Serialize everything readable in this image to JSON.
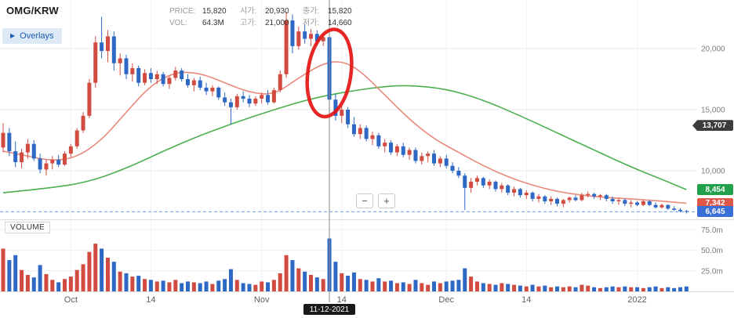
{
  "header": {
    "symbol": "OMG/KRW",
    "overlays_label": "Overlays",
    "info": {
      "price_label": "PRICE:",
      "price": "15,820",
      "vol_label": "VOL:",
      "vol": "64.3M",
      "open_label": "시가:",
      "open": "20,930",
      "high_label": "고가:",
      "high": "21,000",
      "close_label": "종가:",
      "close": "15,820",
      "low_label": "저가:",
      "low": "14,660"
    }
  },
  "controls": {
    "zoom_out": "−",
    "zoom_in": "+"
  },
  "volume_panel": {
    "label": "VOLUME"
  },
  "chart_data": {
    "type": "candlestick+volume",
    "title": "OMG/KRW daily candlestick chart with two moving averages and volume",
    "colors": {
      "up": "#d14b41",
      "down": "#2d68c4",
      "crosshair": "#8a8a8a",
      "dashed_line": "#6e9bf0"
    },
    "y_ticks_price": [
      {
        "label": "20,000",
        "value": 20000
      },
      {
        "label": "15,000",
        "value": 15000
      },
      {
        "label": "10,000",
        "value": 10000
      }
    ],
    "y_ticks_volume": [
      {
        "label": "75.0m",
        "value": 75
      },
      {
        "label": "50.0m",
        "value": 50
      },
      {
        "label": "25.0m",
        "value": 25
      }
    ],
    "x_ticks": [
      {
        "label": "Oct",
        "index": 11
      },
      {
        "label": "14",
        "index": 24
      },
      {
        "label": "Nov",
        "index": 42
      },
      {
        "label": "14",
        "index": 55
      },
      {
        "label": "Dec",
        "index": 72
      },
      {
        "label": "14",
        "index": 85
      },
      {
        "label": "2022",
        "index": 103
      }
    ],
    "price_badges": [
      {
        "label": "13,707",
        "price": 13707,
        "color": "#3c3c3c",
        "kind": "crosshair-price"
      },
      {
        "label": "8,454",
        "price": 8454,
        "color": "#23a04b",
        "kind": "ma-green-value"
      },
      {
        "label": "7,342",
        "price": 7342,
        "color": "#e0564a",
        "kind": "ma-red-value"
      },
      {
        "label": "6,645",
        "price": 6645,
        "color": "#3a6fd8",
        "kind": "last-price"
      }
    ],
    "dashed_line_price": 6645,
    "crosshair": {
      "index": 53,
      "date_label": "11-12-2021"
    },
    "annotation_ellipse": {
      "index": 53,
      "price_top": 21600,
      "price_bottom": 14400,
      "width_candles": 7,
      "rotate_deg": 8,
      "color": "#e51414"
    },
    "ma_green": {
      "color": "#4caf50",
      "points": [
        [
          0,
          8200
        ],
        [
          8,
          8600
        ],
        [
          14,
          9100
        ],
        [
          20,
          10200
        ],
        [
          26,
          11600
        ],
        [
          32,
          12900
        ],
        [
          38,
          14000
        ],
        [
          44,
          15000
        ],
        [
          50,
          15900
        ],
        [
          56,
          16500
        ],
        [
          62,
          16900
        ],
        [
          66,
          17000
        ],
        [
          72,
          16700
        ],
        [
          78,
          15800
        ],
        [
          84,
          14500
        ],
        [
          90,
          13100
        ],
        [
          96,
          11700
        ],
        [
          102,
          10300
        ],
        [
          107,
          9300
        ],
        [
          111,
          8454
        ]
      ]
    },
    "ma_red": {
      "color": "#e8897b",
      "points": [
        [
          0,
          11600
        ],
        [
          4,
          11200
        ],
        [
          8,
          10800
        ],
        [
          12,
          11100
        ],
        [
          16,
          12500
        ],
        [
          20,
          14800
        ],
        [
          24,
          17000
        ],
        [
          28,
          18100
        ],
        [
          32,
          18000
        ],
        [
          36,
          17200
        ],
        [
          40,
          16400
        ],
        [
          44,
          16200
        ],
        [
          48,
          17600
        ],
        [
          52,
          18800
        ],
        [
          55,
          19000
        ],
        [
          58,
          18200
        ],
        [
          62,
          16200
        ],
        [
          66,
          14200
        ],
        [
          70,
          12600
        ],
        [
          74,
          11500
        ],
        [
          78,
          10400
        ],
        [
          82,
          9500
        ],
        [
          86,
          8800
        ],
        [
          90,
          8300
        ],
        [
          94,
          8000
        ],
        [
          98,
          7800
        ],
        [
          102,
          7700
        ],
        [
          106,
          7550
        ],
        [
          111,
          7342
        ]
      ]
    },
    "candles": [
      [
        "2021-09-20",
        11900,
        13900,
        11500,
        13100,
        52
      ],
      [
        "2021-09-21",
        13100,
        13500,
        11200,
        11600,
        38
      ],
      [
        "2021-09-22",
        11600,
        12400,
        10300,
        10700,
        44
      ],
      [
        "2021-09-23",
        10700,
        11800,
        10200,
        11500,
        26
      ],
      [
        "2021-09-24",
        11500,
        12600,
        11000,
        12200,
        20
      ],
      [
        "2021-09-25",
        12200,
        12500,
        10800,
        11000,
        17
      ],
      [
        "2021-09-26",
        11000,
        11400,
        9800,
        10100,
        32
      ],
      [
        "2021-09-27",
        10100,
        10900,
        9600,
        10600,
        21
      ],
      [
        "2021-09-28",
        10600,
        11200,
        10100,
        10900,
        14
      ],
      [
        "2021-09-29",
        10900,
        11300,
        10300,
        10500,
        11
      ],
      [
        "2021-09-30",
        10500,
        11600,
        10400,
        11400,
        15
      ],
      [
        "2021-10-01",
        11400,
        12200,
        11100,
        12000,
        18
      ],
      [
        "2021-10-02",
        12000,
        13500,
        11800,
        13300,
        26
      ],
      [
        "2021-10-03",
        13300,
        14800,
        13100,
        14500,
        33
      ],
      [
        "2021-10-04",
        14500,
        17500,
        14300,
        17200,
        48
      ],
      [
        "2021-10-05",
        17200,
        21000,
        16800,
        20500,
        58
      ],
      [
        "2021-10-06",
        20500,
        22600,
        19200,
        19800,
        52
      ],
      [
        "2021-10-07",
        19800,
        21500,
        18900,
        21000,
        41
      ],
      [
        "2021-10-08",
        21000,
        21400,
        18200,
        18800,
        36
      ],
      [
        "2021-10-09",
        18800,
        19600,
        17800,
        19200,
        24
      ],
      [
        "2021-10-10",
        19200,
        19500,
        17500,
        17900,
        22
      ],
      [
        "2021-10-11",
        17900,
        18800,
        17300,
        18400,
        18
      ],
      [
        "2021-10-12",
        18400,
        18600,
        16900,
        17200,
        19
      ],
      [
        "2021-10-13",
        17200,
        18300,
        17000,
        18000,
        15
      ],
      [
        "2021-10-14",
        18000,
        18400,
        17200,
        17500,
        14
      ],
      [
        "2021-10-15",
        17500,
        18200,
        17100,
        17900,
        12
      ],
      [
        "2021-10-16",
        17900,
        18100,
        16900,
        17100,
        13
      ],
      [
        "2021-10-17",
        17100,
        17800,
        16700,
        17600,
        11
      ],
      [
        "2021-10-18",
        17600,
        18500,
        17400,
        18200,
        14
      ],
      [
        "2021-10-19",
        18200,
        18400,
        17300,
        17500,
        10
      ],
      [
        "2021-10-20",
        17500,
        17900,
        16800,
        17000,
        12
      ],
      [
        "2021-10-21",
        17000,
        17600,
        16500,
        17400,
        11
      ],
      [
        "2021-10-22",
        17400,
        17700,
        16600,
        16800,
        10
      ],
      [
        "2021-10-23",
        16800,
        17200,
        16200,
        16500,
        12
      ],
      [
        "2021-10-24",
        16500,
        17000,
        16100,
        16800,
        9
      ],
      [
        "2021-10-25",
        16800,
        16900,
        15800,
        16000,
        13
      ],
      [
        "2021-10-26",
        16000,
        16400,
        15300,
        15600,
        15
      ],
      [
        "2021-10-27",
        15600,
        15900,
        13800,
        15200,
        27
      ],
      [
        "2021-10-28",
        15200,
        16300,
        15000,
        16100,
        14
      ],
      [
        "2021-10-29",
        16100,
        16500,
        15600,
        15900,
        10
      ],
      [
        "2021-10-30",
        15900,
        16200,
        15200,
        15500,
        9
      ],
      [
        "2021-10-31",
        15500,
        16100,
        15300,
        15900,
        8
      ],
      [
        "2021-11-01",
        15900,
        16400,
        15500,
        16200,
        12
      ],
      [
        "2021-11-02",
        16200,
        16600,
        15400,
        15600,
        11
      ],
      [
        "2021-11-03",
        15600,
        16800,
        15500,
        16600,
        14
      ],
      [
        "2021-11-04",
        16600,
        18200,
        16400,
        17900,
        22
      ],
      [
        "2021-11-05",
        17900,
        23000,
        17600,
        22300,
        44
      ],
      [
        "2021-11-06",
        22300,
        22800,
        19600,
        20200,
        38
      ],
      [
        "2021-11-07",
        20200,
        21800,
        19900,
        21400,
        28
      ],
      [
        "2021-11-08",
        21400,
        22000,
        20400,
        20800,
        24
      ],
      [
        "2021-11-09",
        20800,
        21600,
        20200,
        21200,
        20
      ],
      [
        "2021-11-10",
        21200,
        21500,
        20300,
        20600,
        17
      ],
      [
        "2021-11-11",
        20600,
        21200,
        20200,
        20930,
        15
      ],
      [
        "2021-11-12",
        20930,
        21000,
        14660,
        15820,
        64.3
      ],
      [
        "2021-11-13",
        15820,
        16300,
        14100,
        14500,
        36
      ],
      [
        "2021-11-14",
        14500,
        15300,
        13900,
        15000,
        22
      ],
      [
        "2021-11-15",
        15000,
        15200,
        13500,
        13800,
        19
      ],
      [
        "2021-11-16",
        13800,
        14400,
        12800,
        13000,
        23
      ],
      [
        "2021-11-17",
        13000,
        13800,
        12600,
        13500,
        15
      ],
      [
        "2021-11-18",
        13500,
        13700,
        12400,
        12600,
        14
      ],
      [
        "2021-11-19",
        12600,
        13200,
        12100,
        12900,
        12
      ],
      [
        "2021-11-20",
        12900,
        13100,
        11800,
        12000,
        16
      ],
      [
        "2021-11-21",
        12000,
        12600,
        11500,
        12300,
        12
      ],
      [
        "2021-11-22",
        12300,
        12500,
        11300,
        11500,
        13
      ],
      [
        "2021-11-23",
        11500,
        12200,
        11200,
        12000,
        10
      ],
      [
        "2021-11-24",
        12000,
        12300,
        11100,
        11300,
        11
      ],
      [
        "2021-11-25",
        11300,
        11900,
        10900,
        11700,
        9
      ],
      [
        "2021-11-26",
        11700,
        11900,
        10600,
        10800,
        14
      ],
      [
        "2021-11-27",
        10800,
        11500,
        10500,
        11200,
        10
      ],
      [
        "2021-11-28",
        11200,
        11600,
        10700,
        11400,
        8
      ],
      [
        "2021-11-29",
        11400,
        11700,
        10400,
        10600,
        12
      ],
      [
        "2021-11-30",
        10600,
        11200,
        10300,
        11000,
        10
      ],
      [
        "2021-12-01",
        11000,
        11300,
        10200,
        10400,
        12
      ],
      [
        "2021-12-02",
        10400,
        10700,
        9800,
        10000,
        13
      ],
      [
        "2021-12-03",
        10000,
        10300,
        9400,
        9600,
        14
      ],
      [
        "2021-12-04",
        9600,
        9800,
        6800,
        8600,
        28
      ],
      [
        "2021-12-05",
        8600,
        9400,
        8200,
        9100,
        18
      ],
      [
        "2021-12-06",
        9100,
        9600,
        8800,
        9400,
        12
      ],
      [
        "2021-12-07",
        9400,
        9500,
        8600,
        8800,
        10
      ],
      [
        "2021-12-08",
        8800,
        9300,
        8500,
        9100,
        9
      ],
      [
        "2021-12-09",
        9100,
        9200,
        8300,
        8500,
        8
      ],
      [
        "2021-12-10",
        8500,
        9000,
        8200,
        8800,
        10
      ],
      [
        "2021-12-11",
        8800,
        8900,
        8000,
        8200,
        9
      ],
      [
        "2021-12-12",
        8200,
        8700,
        7900,
        8500,
        8
      ],
      [
        "2021-12-13",
        8500,
        8600,
        7800,
        8000,
        7
      ],
      [
        "2021-12-14",
        8000,
        8400,
        7700,
        8200,
        6
      ],
      [
        "2021-12-15",
        8200,
        8300,
        7500,
        7700,
        8
      ],
      [
        "2021-12-16",
        7700,
        8100,
        7400,
        7900,
        6
      ],
      [
        "2021-12-17",
        7900,
        8000,
        7300,
        7500,
        7
      ],
      [
        "2021-12-18",
        7500,
        7900,
        7200,
        7700,
        5
      ],
      [
        "2021-12-19",
        7700,
        7800,
        7100,
        7300,
        6
      ],
      [
        "2021-12-20",
        7300,
        7700,
        7000,
        7600,
        5
      ],
      [
        "2021-12-21",
        7600,
        7900,
        7400,
        7800,
        6
      ],
      [
        "2021-12-22",
        7800,
        8000,
        7500,
        7600,
        5
      ],
      [
        "2021-12-23",
        7600,
        8200,
        7500,
        8000,
        8
      ],
      [
        "2021-12-24",
        8000,
        8300,
        7800,
        8100,
        7
      ],
      [
        "2021-12-25",
        8100,
        8200,
        7700,
        7900,
        5
      ],
      [
        "2021-12-26",
        7900,
        8100,
        7600,
        8000,
        4
      ],
      [
        "2021-12-27",
        8000,
        8100,
        7500,
        7700,
        5
      ],
      [
        "2021-12-28",
        7700,
        7900,
        7300,
        7500,
        6
      ],
      [
        "2021-12-29",
        7500,
        7800,
        7200,
        7600,
        5
      ],
      [
        "2021-12-30",
        7600,
        7700,
        7100,
        7300,
        6
      ],
      [
        "2021-12-31",
        7300,
        7600,
        7000,
        7400,
        5
      ],
      [
        "2022-01-01",
        7400,
        7500,
        7100,
        7200,
        5
      ],
      [
        "2022-01-02",
        7200,
        7600,
        7100,
        7500,
        4
      ],
      [
        "2022-01-03",
        7500,
        7600,
        7100,
        7200,
        5
      ],
      [
        "2022-01-04",
        7200,
        7400,
        6900,
        7000,
        6
      ],
      [
        "2022-01-05",
        7000,
        7300,
        6900,
        7200,
        4
      ],
      [
        "2022-01-06",
        7200,
        7250,
        6800,
        6900,
        5
      ],
      [
        "2022-01-07",
        6900,
        7100,
        6700,
        6800,
        4
      ],
      [
        "2022-01-08",
        6800,
        6950,
        6600,
        6700,
        5
      ],
      [
        "2022-01-09",
        6700,
        6800,
        6500,
        6645,
        6
      ]
    ]
  }
}
